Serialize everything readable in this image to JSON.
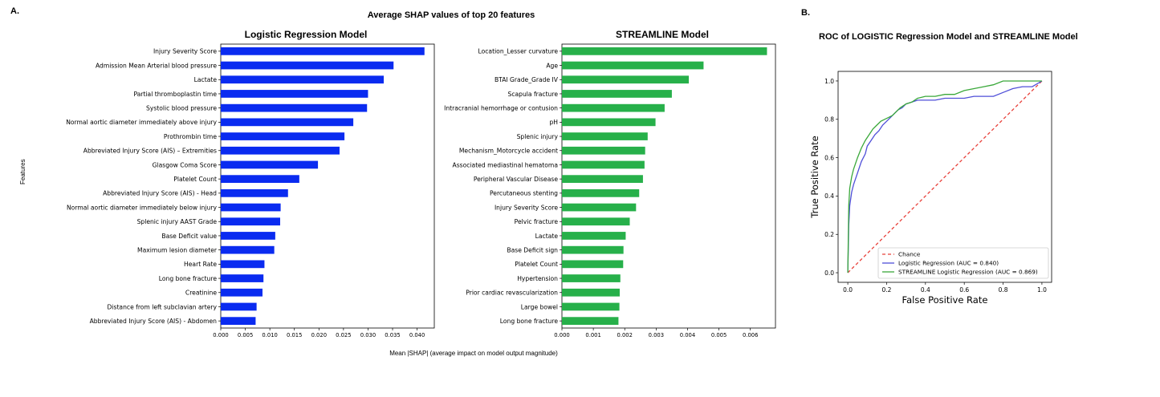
{
  "panel_a_label": "A.",
  "panel_b_label": "B.",
  "figure_title": "Average SHAP values of top 20 features",
  "shared_xlabel": "Mean |SHAP| (average impact on model output magnitude)",
  "shared_ylabel": "Features",
  "colors": {
    "logistic_bar": "#0a2bf0",
    "streamline_bar": "#27b04a",
    "roc_logistic": "#4f4fd8",
    "roc_streamline": "#3aa83a",
    "chance": "#e8403a"
  },
  "chart_data": [
    {
      "type": "bar",
      "orientation": "horizontal",
      "title": "Logistic Regression Model",
      "categories": [
        "Injury Severity Score",
        "Admission Mean Arterial blood pressure",
        "Lactate",
        "Partial thromboplastin time",
        "Systolic blood pressure",
        "Normal aortic diameter immediately above injury",
        "Prothrombin time",
        "Abbreviated Injury Score (AIS) – Extremities",
        "Glasgow Coma Score",
        "Platelet Count",
        "Abbreviated Injury Score (AIS) -  Head",
        "Normal aortic diameter immediately below injury",
        "Splenic injury AAST Grade",
        "Base Deficit value",
        "Maximum lesion diameter",
        "Heart Rate",
        "Long bone fracture",
        "Creatinine",
        "Distance from left subclavian artery",
        "Abbreviated Injury Score (AIS)  - Abdomen"
      ],
      "values": [
        0.0415,
        0.0352,
        0.0332,
        0.03,
        0.0298,
        0.027,
        0.0252,
        0.0242,
        0.0198,
        0.016,
        0.0137,
        0.0122,
        0.0121,
        0.0111,
        0.0109,
        0.0089,
        0.0087,
        0.0085,
        0.0073,
        0.0071
      ],
      "xlim": [
        0,
        0.0435
      ],
      "ticks": [
        "0.000",
        "0.005",
        "0.010",
        "0.015",
        "0.020",
        "0.025",
        "0.030",
        "0.035",
        "0.040"
      ],
      "tick_values": [
        0,
        0.005,
        0.01,
        0.015,
        0.02,
        0.025,
        0.03,
        0.035,
        0.04
      ]
    },
    {
      "type": "bar",
      "orientation": "horizontal",
      "title": "STREAMLINE Model",
      "categories": [
        "Location_Lesser curvature",
        "Age",
        "BTAI Grade_Grade IV",
        "Scapula fracture",
        "Intracranial hemorrhage or contusion",
        "pH",
        "Splenic injury",
        "Mechanism_Motorcycle accident",
        "Associated mediastinal hematoma",
        "Peripheral Vascular Disease",
        "Percutaneous stenting",
        "Injury Severity Score",
        "Pelvic fracture",
        "Lactate",
        "Base Deficit sign",
        "Platelet Count",
        "Hypertension",
        "Prior cardiac revascularization",
        "Large bowel",
        "Long bone fracture"
      ],
      "values": [
        0.00653,
        0.00451,
        0.00404,
        0.0035,
        0.00327,
        0.00298,
        0.00273,
        0.00265,
        0.00263,
        0.00258,
        0.00246,
        0.00236,
        0.00216,
        0.00203,
        0.00196,
        0.00195,
        0.00186,
        0.00184,
        0.00183,
        0.0018
      ],
      "xlim": [
        0,
        0.0068
      ],
      "ticks": [
        "0.000",
        "0.001",
        "0.002",
        "0.003",
        "0.004",
        "0.005",
        "0.006"
      ],
      "tick_values": [
        0,
        0.001,
        0.002,
        0.003,
        0.004,
        0.005,
        0.006
      ]
    },
    {
      "type": "line",
      "title": "ROC of LOGISTIC Regression Model and STREAMLINE Model",
      "xlabel": "False Positive Rate",
      "ylabel": "True Positive Rate",
      "xlim": [
        -0.05,
        1.05
      ],
      "ylim": [
        -0.05,
        1.05
      ],
      "xticks": [
        "0.0",
        "0.2",
        "0.4",
        "0.6",
        "0.8",
        "1.0"
      ],
      "yticks": [
        "0.0",
        "0.2",
        "0.4",
        "0.6",
        "0.8",
        "1.0"
      ],
      "tick_values": [
        0,
        0.2,
        0.4,
        0.6,
        0.8,
        1.0
      ],
      "legend_location": "lower-right",
      "series": [
        {
          "name": "Chance",
          "style": "dashed",
          "x": [
            0,
            1
          ],
          "y": [
            0,
            1
          ]
        },
        {
          "name": "Logistic Regression (AUC = 0.840)",
          "x": [
            0,
            0.005,
            0.01,
            0.02,
            0.03,
            0.05,
            0.07,
            0.09,
            0.1,
            0.12,
            0.14,
            0.16,
            0.18,
            0.2,
            0.22,
            0.24,
            0.26,
            0.28,
            0.3,
            0.33,
            0.36,
            0.4,
            0.45,
            0.5,
            0.55,
            0.6,
            0.65,
            0.7,
            0.75,
            0.8,
            0.85,
            0.9,
            0.95,
            1.0
          ],
          "y": [
            0,
            0.25,
            0.35,
            0.42,
            0.46,
            0.52,
            0.58,
            0.62,
            0.66,
            0.69,
            0.72,
            0.74,
            0.77,
            0.79,
            0.81,
            0.83,
            0.85,
            0.86,
            0.88,
            0.89,
            0.9,
            0.9,
            0.9,
            0.91,
            0.91,
            0.91,
            0.92,
            0.92,
            0.92,
            0.94,
            0.96,
            0.97,
            0.97,
            1.0
          ]
        },
        {
          "name": "STREAMLINE Logistic Regression (AUC = 0.869)",
          "x": [
            0,
            0.005,
            0.01,
            0.02,
            0.03,
            0.05,
            0.07,
            0.09,
            0.11,
            0.13,
            0.15,
            0.17,
            0.19,
            0.21,
            0.23,
            0.25,
            0.27,
            0.3,
            0.33,
            0.36,
            0.4,
            0.45,
            0.5,
            0.55,
            0.6,
            0.65,
            0.7,
            0.75,
            0.8,
            0.85,
            0.9,
            0.95,
            1.0
          ],
          "y": [
            0,
            0.35,
            0.44,
            0.5,
            0.54,
            0.6,
            0.65,
            0.69,
            0.72,
            0.75,
            0.77,
            0.79,
            0.8,
            0.81,
            0.82,
            0.84,
            0.86,
            0.88,
            0.89,
            0.91,
            0.92,
            0.92,
            0.93,
            0.93,
            0.95,
            0.96,
            0.97,
            0.98,
            1.0,
            1.0,
            1.0,
            1.0,
            1.0
          ]
        }
      ]
    }
  ]
}
